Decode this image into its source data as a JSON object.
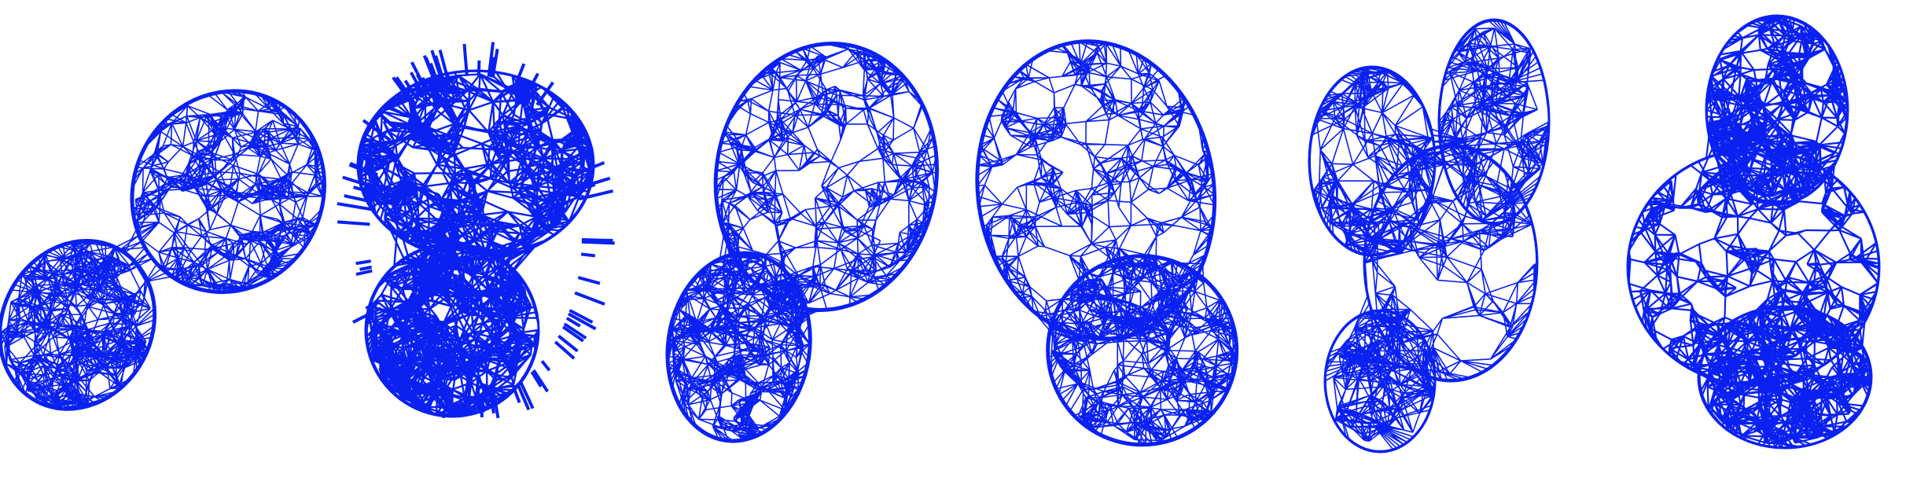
{
  "figure": {
    "background": "#ffffff",
    "mesh_color": "#0a21f2",
    "panels": [
      {
        "id": "mesh-1",
        "style": "smooth-wireframe"
      },
      {
        "id": "mesh-2",
        "style": "noisy-wireframe"
      },
      {
        "id": "mesh-3",
        "style": "smooth-wireframe"
      },
      {
        "id": "mesh-4",
        "style": "smooth-wireframe"
      },
      {
        "id": "mesh-5",
        "style": "sparse-lobed-wireframe"
      },
      {
        "id": "mesh-6",
        "style": "dense-lobed-wireframe"
      }
    ]
  }
}
